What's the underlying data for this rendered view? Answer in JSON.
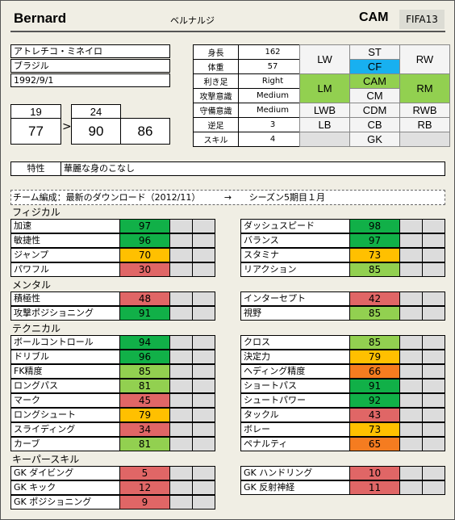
{
  "header": {
    "name": "Bernard",
    "kana": "ベルナルジ",
    "position": "CAM",
    "version": "FIFA13"
  },
  "info": {
    "club": "アトレチコ・ミネイロ",
    "nation": "ブラジル",
    "birth": "1992/9/1"
  },
  "attributes": [
    {
      "key": "身長",
      "value": "162"
    },
    {
      "key": "体重",
      "value": "57"
    },
    {
      "key": "利き足",
      "value": "Right"
    },
    {
      "key": "攻撃意識",
      "value": "Medium"
    },
    {
      "key": "守備意識",
      "value": "Medium"
    },
    {
      "key": "逆足",
      "value": "3"
    },
    {
      "key": "スキル",
      "value": "4"
    }
  ],
  "positions": {
    "lw": "LW",
    "st": "ST",
    "rw": "RW",
    "cf": "CF",
    "lm": "LM",
    "cam": "CAM",
    "rm": "RM",
    "cm": "CM",
    "lwb": "LWB",
    "cdm": "CDM",
    "rwb": "RWB",
    "lb": "LB",
    "cb": "CB",
    "rb": "RB",
    "gk": "GK"
  },
  "ratings": {
    "age_start": "19",
    "ovr_start": "77",
    "arrow": ">",
    "age_end": "24",
    "ovr_end": "90",
    "potential": "86"
  },
  "traits": {
    "label": "特性",
    "value": "華麗な身のこなし"
  },
  "formation_note": {
    "text": "チーム編成：最新のダウンロード（2012/11）",
    "arrow": "→",
    "season": "シーズン5期目１月"
  },
  "colors": {
    "green": "#11b048",
    "lightgreen": "#92d050",
    "yellow": "#ffc000",
    "orange": "#f57c20",
    "red": "#e06666",
    "blue": "#18b0f0"
  },
  "sections": [
    {
      "title": "フィジカル",
      "left": [
        {
          "label": "加速",
          "value": 97
        },
        {
          "label": "敏捷性",
          "value": 96
        },
        {
          "label": "ジャンプ",
          "value": 70
        },
        {
          "label": "パワフル",
          "value": 30
        }
      ],
      "right": [
        {
          "label": "ダッシュスピード",
          "value": 98
        },
        {
          "label": "バランス",
          "value": 97
        },
        {
          "label": "スタミナ",
          "value": 73
        },
        {
          "label": "リアクション",
          "value": 85
        }
      ]
    },
    {
      "title": "メンタル",
      "left": [
        {
          "label": "積極性",
          "value": 48
        },
        {
          "label": "攻撃ポジショニング",
          "value": 91
        }
      ],
      "right": [
        {
          "label": "インターセプト",
          "value": 42
        },
        {
          "label": "視野",
          "value": 85
        }
      ]
    },
    {
      "title": "テクニカル",
      "left": [
        {
          "label": "ボールコントロール",
          "value": 94
        },
        {
          "label": "ドリブル",
          "value": 96
        },
        {
          "label": "FK精度",
          "value": 85
        },
        {
          "label": "ロングパス",
          "value": 81
        },
        {
          "label": "マーク",
          "value": 45
        },
        {
          "label": "ロングシュート",
          "value": 79
        },
        {
          "label": "スライディング",
          "value": 34
        },
        {
          "label": "カーブ",
          "value": 81
        }
      ],
      "right": [
        {
          "label": "クロス",
          "value": 85
        },
        {
          "label": "決定力",
          "value": 79
        },
        {
          "label": "ヘディング精度",
          "value": 66
        },
        {
          "label": "ショートパス",
          "value": 91
        },
        {
          "label": "シュートパワー",
          "value": 92
        },
        {
          "label": "タックル",
          "value": 43
        },
        {
          "label": "ボレー",
          "value": 73
        },
        {
          "label": "ペナルティ",
          "value": 65
        }
      ]
    },
    {
      "title": "キーパースキル",
      "left": [
        {
          "label": "GK ダイビング",
          "value": 5
        },
        {
          "label": "GK キック",
          "value": 12
        },
        {
          "label": "GK ポジショニング",
          "value": 9
        }
      ],
      "right": [
        {
          "label": "GK ハンドリング",
          "value": 10
        },
        {
          "label": "GK 反射神経",
          "value": 11
        }
      ]
    }
  ]
}
